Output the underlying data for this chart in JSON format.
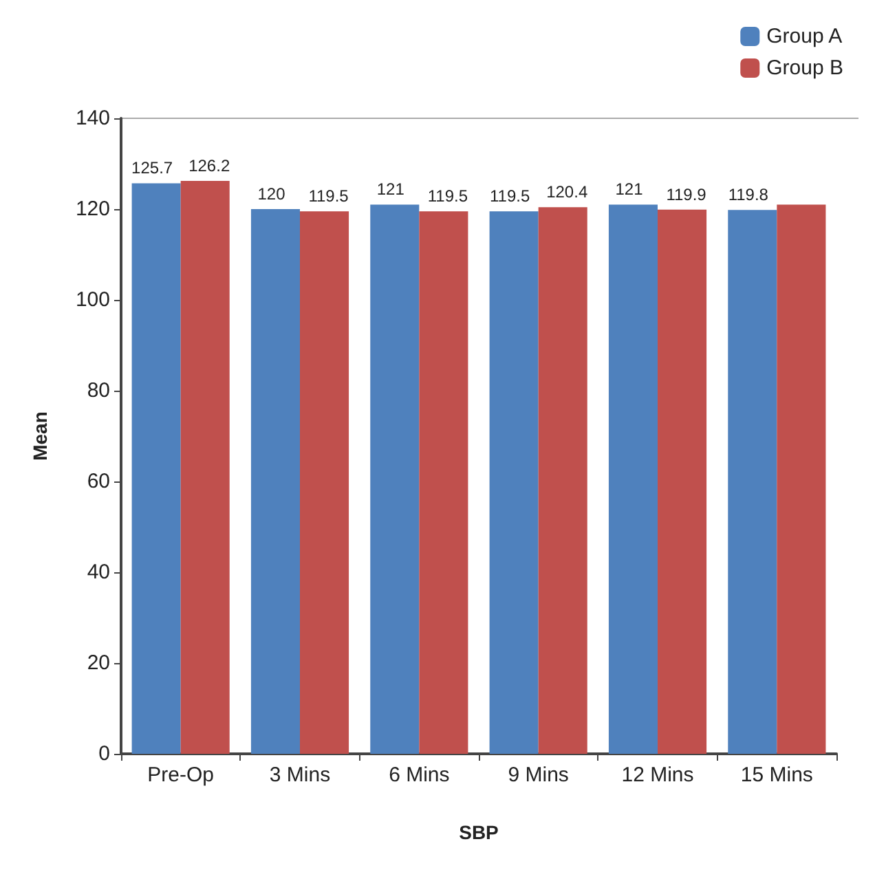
{
  "chart_data": {
    "type": "bar",
    "xlabel": "SBP",
    "ylabel": "Mean",
    "categories": [
      "Pre-Op",
      "3 Mins",
      "6 Mins",
      "9 Mins",
      "12 Mins",
      "15 Mins"
    ],
    "series": [
      {
        "name": "Group A",
        "color": "#4f81bd",
        "values": [
          125.7,
          120,
          121,
          119.5,
          121,
          119.8
        ],
        "value_labels": [
          "125.7",
          "120",
          "121",
          "119.5",
          "121",
          "119.8"
        ]
      },
      {
        "name": "Group B",
        "color": "#c0504d",
        "values": [
          126.2,
          119.5,
          119.5,
          120.4,
          119.9,
          121
        ],
        "value_labels": [
          "126.2",
          "119.5",
          "119.5",
          "120.4",
          "119.9",
          null
        ]
      }
    ],
    "ylim": [
      0,
      140
    ],
    "yticks": [
      0,
      20,
      40,
      60,
      80,
      100,
      120,
      140
    ],
    "grid": false,
    "legend": "top right"
  }
}
